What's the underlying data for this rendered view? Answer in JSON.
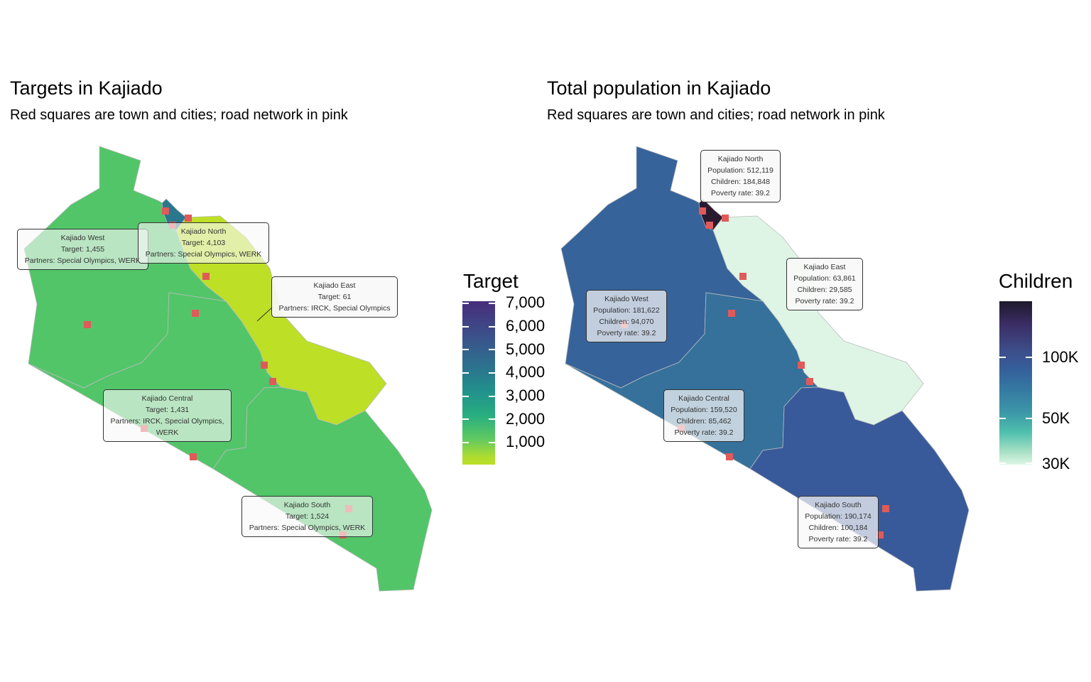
{
  "left": {
    "title": "Targets in Kajiado",
    "subtitle": "Red squares are town and cities; road network in pink",
    "legend": {
      "title": "Target",
      "labels": [
        "7,000",
        "6,000",
        "5,000",
        "4,000",
        "3,000",
        "2,000",
        "1,000"
      ],
      "scale": "viridis"
    },
    "regions": [
      {
        "name": "Kajiado West",
        "target": "Target: 1,455",
        "partners": "Partners: Special Olympics, WERK",
        "color": "#52c569"
      },
      {
        "name": "Kajiado North",
        "target": "Target: 4,103",
        "partners": "Partners: Special Olympics, WERK",
        "color": "#2a788e"
      },
      {
        "name": "Kajiado East",
        "target": "Target: 61",
        "partners": "Partners: IRCK, Special Olympics",
        "color": "#bddf26"
      },
      {
        "name": "Kajiado Central",
        "target": "Target: 1,431",
        "partners": "Partners: IRCK, Special Olympics, WERK",
        "color": "#52c569"
      },
      {
        "name": "Kajiado South",
        "target": "Target: 1,524",
        "partners": "Partners: Special Olympics, WERK",
        "color": "#52c569"
      }
    ]
  },
  "right": {
    "title": "Total population in Kajiado",
    "subtitle": "Red squares are town and cities; road network in pink",
    "legend": {
      "title": "Children",
      "labels": [
        "100K",
        "50K",
        "30K"
      ],
      "scale": "mako (log)"
    },
    "regions": [
      {
        "name": "Kajiado North",
        "population": "Population: 512,119",
        "children": "Children: 184,848",
        "poverty": "Poverty rate: 39.2",
        "color": "#2a1a30"
      },
      {
        "name": "Kajiado East",
        "population": "Population: 63,861",
        "children": "Children: 29,585",
        "poverty": "Poverty rate: 39.2",
        "color": "#def5e5"
      },
      {
        "name": "Kajiado West",
        "population": "Population: 181,622",
        "children": "Children: 94,070",
        "poverty": "Poverty rate: 39.2",
        "color": "#36639a"
      },
      {
        "name": "Kajiado Central",
        "population": "Population: 159,520",
        "children": "Children: 85,462",
        "poverty": "Poverty rate: 39.2",
        "color": "#35719b"
      },
      {
        "name": "Kajiado South",
        "population": "Population: 190,174",
        "children": "Children: 100,184",
        "poverty": "Poverty rate: 39.2",
        "color": "#395a9a"
      }
    ]
  },
  "colors": {
    "town_marker": "#e05a5a",
    "road": "#f4a3b5",
    "label_bg": "#f8f8f8"
  }
}
